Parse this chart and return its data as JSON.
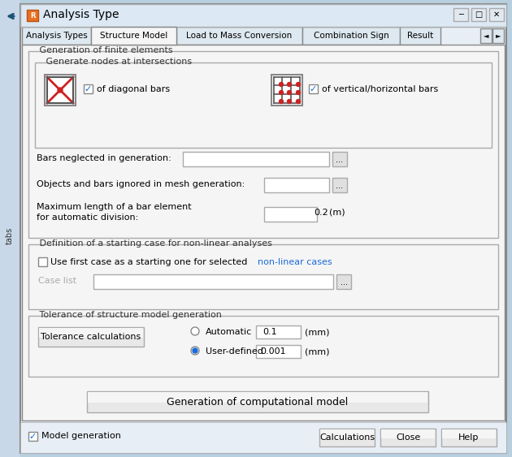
{
  "title": "Analysis Type",
  "bg_outer": "#b8cfe0",
  "bg_dialog": "#f0f0f0",
  "bg_tab_content": "#f5f5f5",
  "border_color": "#999999",
  "title_bar_bg": "#dce9f5",
  "title_bar_text": "Analysis Type",
  "tabs": [
    "Analysis Types",
    "Structure Model",
    "Load to Mass Conversion",
    "Combination Sign",
    "Result"
  ],
  "active_tab": "Structure Model",
  "section1_title": "Generation of finite elements",
  "subsection1_title": "Generate nodes at intersections",
  "check1_label": "of diagonal bars",
  "check1_checked": true,
  "check2_label": "of vertical/horizontal bars",
  "check2_checked": true,
  "label_bars_neglected": "Bars neglected in generation:",
  "label_objects_ignored": "Objects and bars ignored in mesh generation:",
  "label_max_length_1": "Maximum length of a bar element",
  "label_max_length_2": "for automatic division:",
  "max_length_value": "0.2",
  "max_length_unit": "(m)",
  "section2_title": "Definition of a starting case for non-linear analyses",
  "check3_label": "Use first case as a starting one for selected non-linear cases",
  "check3_checked": false,
  "label_case_list": "Case list",
  "section3_title": "Tolerance of structure model generation",
  "btn_tolerance": "Tolerance calculations",
  "radio1_label": "Automatic",
  "radio1_checked": false,
  "radio1_value": "0.1",
  "radio1_unit": "(mm)",
  "radio2_label": "User-defined",
  "radio2_checked": true,
  "radio2_value": "0.001",
  "radio2_unit": "(mm)",
  "btn_gen_model": "Generation of computational model",
  "check_model_gen_label": "Model generation",
  "check_model_gen_checked": true,
  "btn_calculations": "Calculations",
  "btn_close": "Close",
  "btn_help": "Help",
  "sidebar_color": "#c8d8e8",
  "left_arrow_color": "#1a5276"
}
